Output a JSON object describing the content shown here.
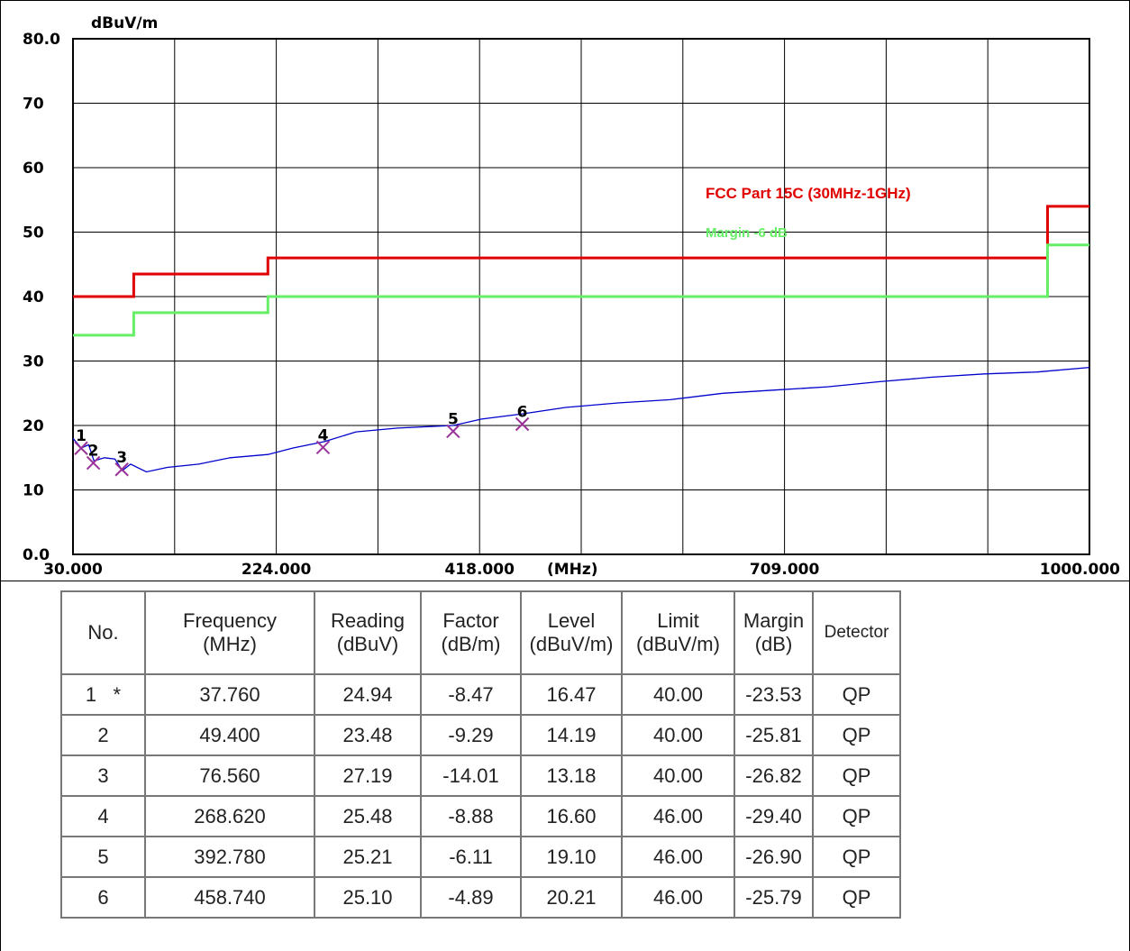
{
  "chart_data": {
    "type": "line",
    "y_unit_label": "dBuV/m",
    "x_unit_label": "(MHz)",
    "ylim": [
      0,
      80
    ],
    "xlim": [
      30,
      1000
    ],
    "y_ticks": [
      "0.0",
      "10",
      "20",
      "30",
      "40",
      "50",
      "60",
      "70",
      "80.0"
    ],
    "x_tick_labels": [
      "30.000",
      "224.000",
      "418.000",
      "709.000",
      "1000.000"
    ],
    "grid": true,
    "series": [
      {
        "name": "FCC Part 15C (30MHz-1GHz)",
        "color": "#e00000",
        "x": [
          30,
          88,
          88,
          216,
          216,
          960,
          960,
          1000
        ],
        "y": [
          40,
          40,
          43.5,
          43.5,
          46,
          46,
          54,
          54
        ]
      },
      {
        "name": "Margin -6 dB",
        "color": "#66ee66",
        "x": [
          30,
          88,
          88,
          216,
          216,
          960,
          960,
          1000
        ],
        "y": [
          34,
          34,
          37.5,
          37.5,
          40,
          40,
          48,
          48
        ]
      },
      {
        "color": "#0000cc",
        "x": [
          30,
          38,
          45,
          50,
          60,
          70,
          77,
          85,
          100,
          120,
          150,
          180,
          216,
          240,
          270,
          300,
          340,
          393,
          420,
          459,
          500,
          550,
          600,
          650,
          700,
          750,
          800,
          850,
          900,
          950,
          1000
        ],
        "y": [
          18,
          16.5,
          17,
          14.5,
          15,
          14.8,
          13,
          14,
          12.8,
          13.5,
          14,
          15,
          15.5,
          16.5,
          17.5,
          19,
          19.6,
          20,
          21,
          21.8,
          22.8,
          23.5,
          24,
          25,
          25.5,
          26,
          26.8,
          27.5,
          28,
          28.3,
          29
        ]
      }
    ],
    "markers": [
      {
        "label": "1",
        "x": 37.76,
        "y": 16.47
      },
      {
        "label": "2",
        "x": 49.4,
        "y": 14.19
      },
      {
        "label": "3",
        "x": 76.56,
        "y": 13.18
      },
      {
        "label": "4",
        "x": 268.62,
        "y": 16.6
      },
      {
        "label": "5",
        "x": 392.78,
        "y": 19.1
      },
      {
        "label": "6",
        "x": 458.74,
        "y": 20.21
      }
    ]
  },
  "table": {
    "headers": [
      {
        "l1": "No.",
        "l2": ""
      },
      {
        "l1": "Frequency",
        "l2": "(MHz)"
      },
      {
        "l1": "Reading",
        "l2": "(dBuV)"
      },
      {
        "l1": "Factor",
        "l2": "(dB/m)"
      },
      {
        "l1": "Level",
        "l2": "(dBuV/m)"
      },
      {
        "l1": "Limit",
        "l2": "(dBuV/m)"
      },
      {
        "l1": "Margin",
        "l2": "(dB)"
      },
      {
        "l1": "Detector",
        "l2": ""
      }
    ],
    "rows": [
      [
        "1   *",
        "37.760",
        "24.94",
        "-8.47",
        "16.47",
        "40.00",
        "-23.53",
        "QP"
      ],
      [
        "2",
        "49.400",
        "23.48",
        "-9.29",
        "14.19",
        "40.00",
        "-25.81",
        "QP"
      ],
      [
        "3",
        "76.560",
        "27.19",
        "-14.01",
        "13.18",
        "40.00",
        "-26.82",
        "QP"
      ],
      [
        "4",
        "268.620",
        "25.48",
        "-8.88",
        "16.60",
        "46.00",
        "-29.40",
        "QP"
      ],
      [
        "5",
        "392.780",
        "25.21",
        "-6.11",
        "19.10",
        "46.00",
        "-26.90",
        "QP"
      ],
      [
        "6",
        "458.740",
        "25.10",
        "-4.89",
        "20.21",
        "46.00",
        "-25.79",
        "QP"
      ]
    ]
  }
}
